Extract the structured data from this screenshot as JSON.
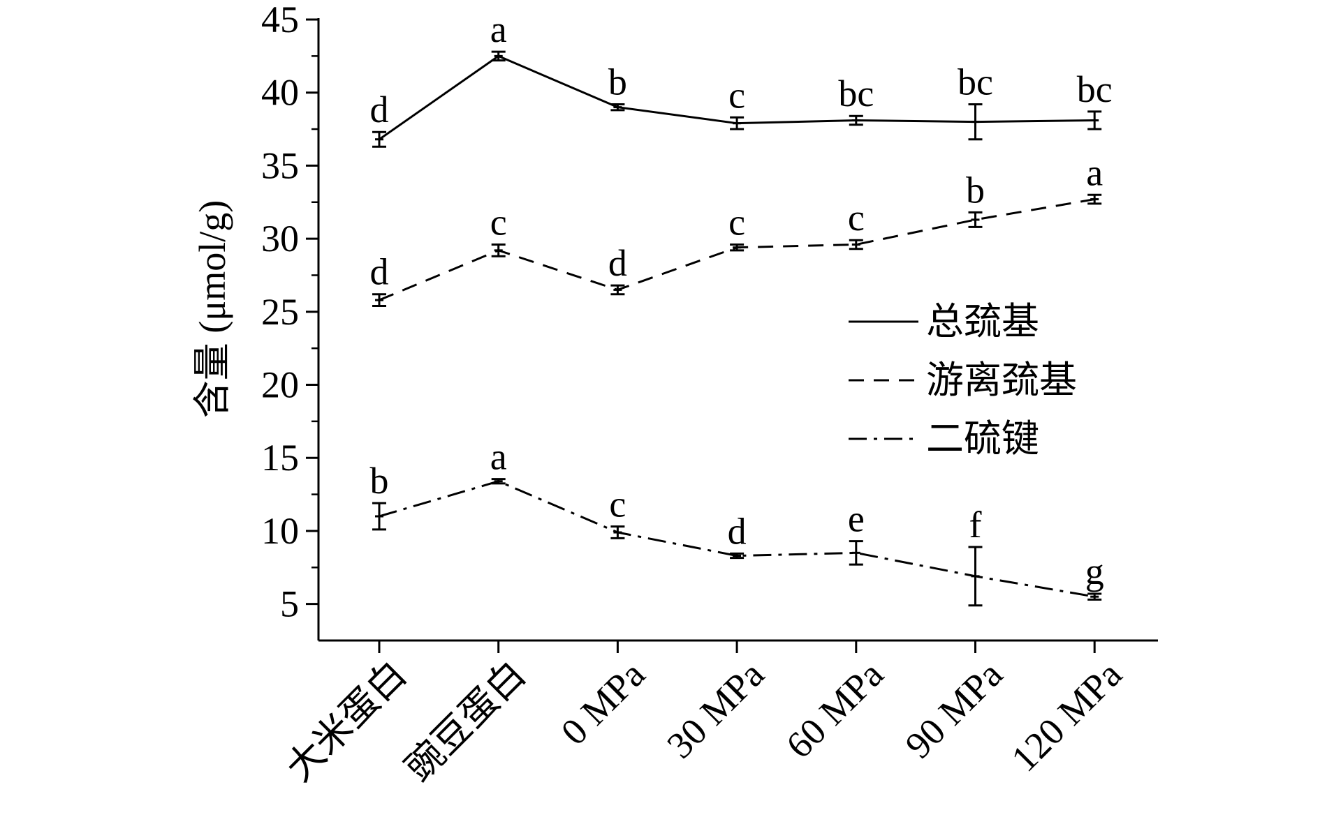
{
  "chart_data": {
    "type": "line",
    "title": "",
    "xlabel": "",
    "ylabel": "含量 (μmol/g)",
    "ylim": [
      2.5,
      45
    ],
    "yticks": [
      5,
      10,
      15,
      20,
      25,
      30,
      35,
      40,
      45
    ],
    "grid": false,
    "legend_position": "right",
    "categories": [
      "大米蛋白",
      "豌豆蛋白",
      "0 MPa",
      "30 MPa",
      "60 MPa",
      "90 MPa",
      "120 MPa"
    ],
    "series": [
      {
        "name": "总巯基",
        "line_style": "solid",
        "values": [
          36.8,
          42.5,
          39.0,
          37.9,
          38.1,
          38.0,
          38.1
        ],
        "errors": [
          0.5,
          0.3,
          0.2,
          0.4,
          0.3,
          1.2,
          0.6
        ],
        "labels": [
          "d",
          "a",
          "b",
          "c",
          "bc",
          "bc",
          "bc"
        ]
      },
      {
        "name": "游离巯基",
        "line_style": "dashed",
        "values": [
          25.8,
          29.2,
          26.5,
          29.4,
          29.6,
          31.3,
          32.7
        ],
        "errors": [
          0.4,
          0.4,
          0.3,
          0.2,
          0.3,
          0.5,
          0.3
        ],
        "labels": [
          "d",
          "c",
          "d",
          "c",
          "c",
          "b",
          "a"
        ]
      },
      {
        "name": "二硫键",
        "line_style": "dashdot",
        "values": [
          11.0,
          13.4,
          9.9,
          8.3,
          8.5,
          6.9,
          5.5
        ],
        "errors": [
          0.9,
          0.15,
          0.4,
          0.15,
          0.8,
          2.0,
          0.2
        ],
        "labels": [
          "b",
          "a",
          "c",
          "d",
          "e",
          "f",
          "g"
        ]
      }
    ]
  },
  "colors": {
    "line": "#000000",
    "background": "#ffffff"
  }
}
